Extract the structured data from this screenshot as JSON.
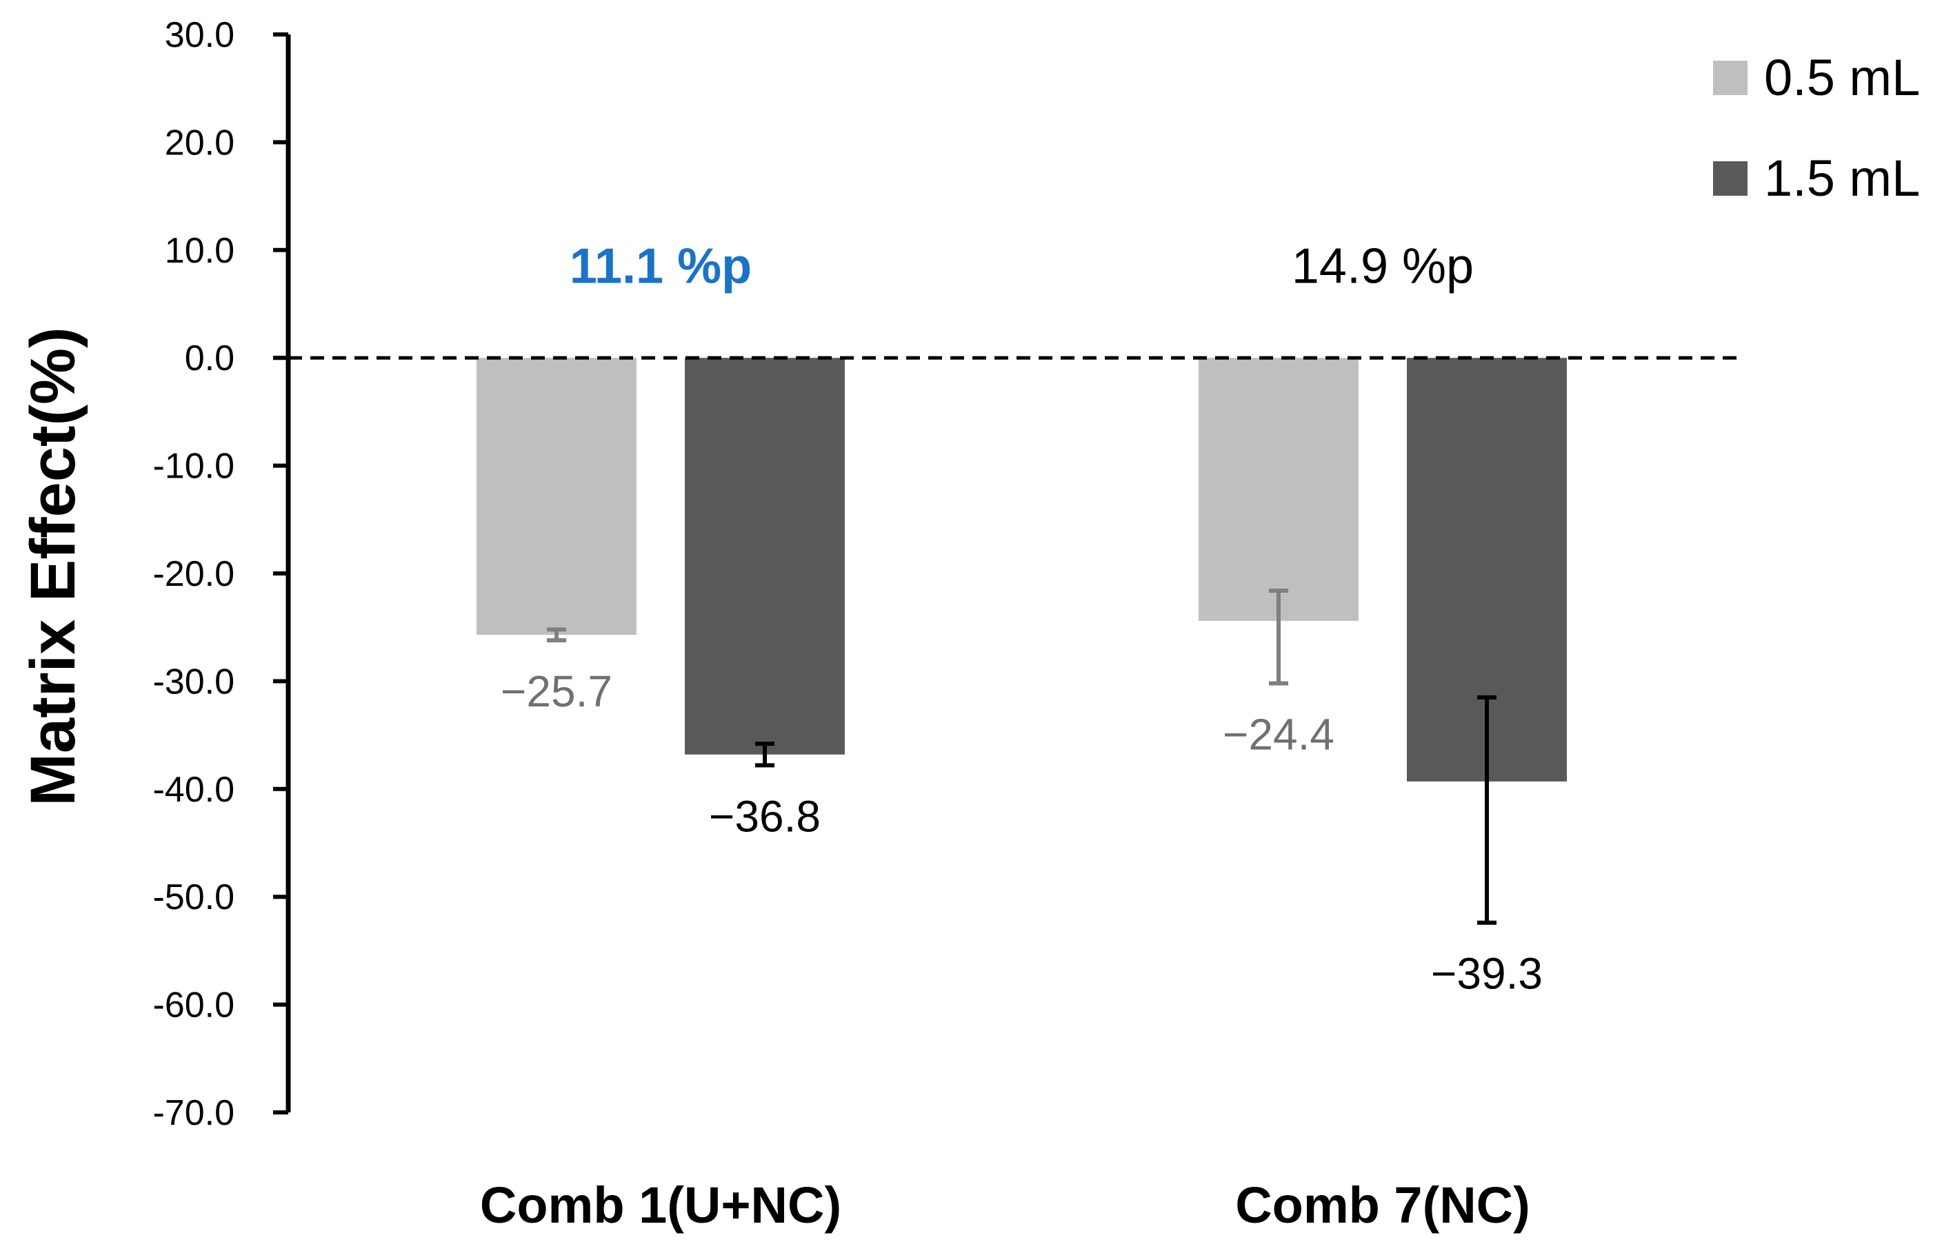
{
  "chart_data": {
    "type": "bar",
    "title": "",
    "xlabel": "",
    "ylabel": "Matrix Effect(%)",
    "ylim": [
      -70,
      30
    ],
    "yticks": [
      30,
      20,
      10,
      0,
      -10,
      -20,
      -30,
      -40,
      -50,
      -60,
      -70
    ],
    "ytick_labels": [
      "30.0",
      "20.0",
      "10.0",
      "0.0",
      "-10.0",
      "-20.0",
      "-30.0",
      "-40.0",
      "-50.0",
      "-60.0",
      "-70.0"
    ],
    "categories": [
      "Comb 1(U+NC)",
      "Comb 7(NC)"
    ],
    "series": [
      {
        "name": "0.5 mL",
        "color": "#bfbfbf",
        "label_color": "#707070",
        "values": [
          -25.7,
          -24.4
        ],
        "error_low": [
          -26.2,
          -30.2
        ],
        "error_high": [
          -25.2,
          -21.6
        ],
        "value_labels": [
          "−25.7",
          "−24.4"
        ]
      },
      {
        "name": "1.5 mL",
        "color": "#595959",
        "label_color": "#000000",
        "values": [
          -36.8,
          -39.3
        ],
        "error_low": [
          -37.8,
          -52.4
        ],
        "error_high": [
          -35.8,
          -31.5
        ],
        "value_labels": [
          "−36.8",
          "−39.3"
        ]
      }
    ],
    "zero_line": "dashed",
    "grid": false,
    "legend_position": "top-right",
    "annotations": [
      {
        "text": "11.1 %p",
        "category": "Comb 1(U+NC)",
        "color": "#1a73c7",
        "bold": true,
        "y": 8.5
      },
      {
        "text": "14.9 %p",
        "category": "Comb 7(NC)",
        "color": "#000000",
        "bold": false,
        "y": 8.5
      }
    ]
  }
}
